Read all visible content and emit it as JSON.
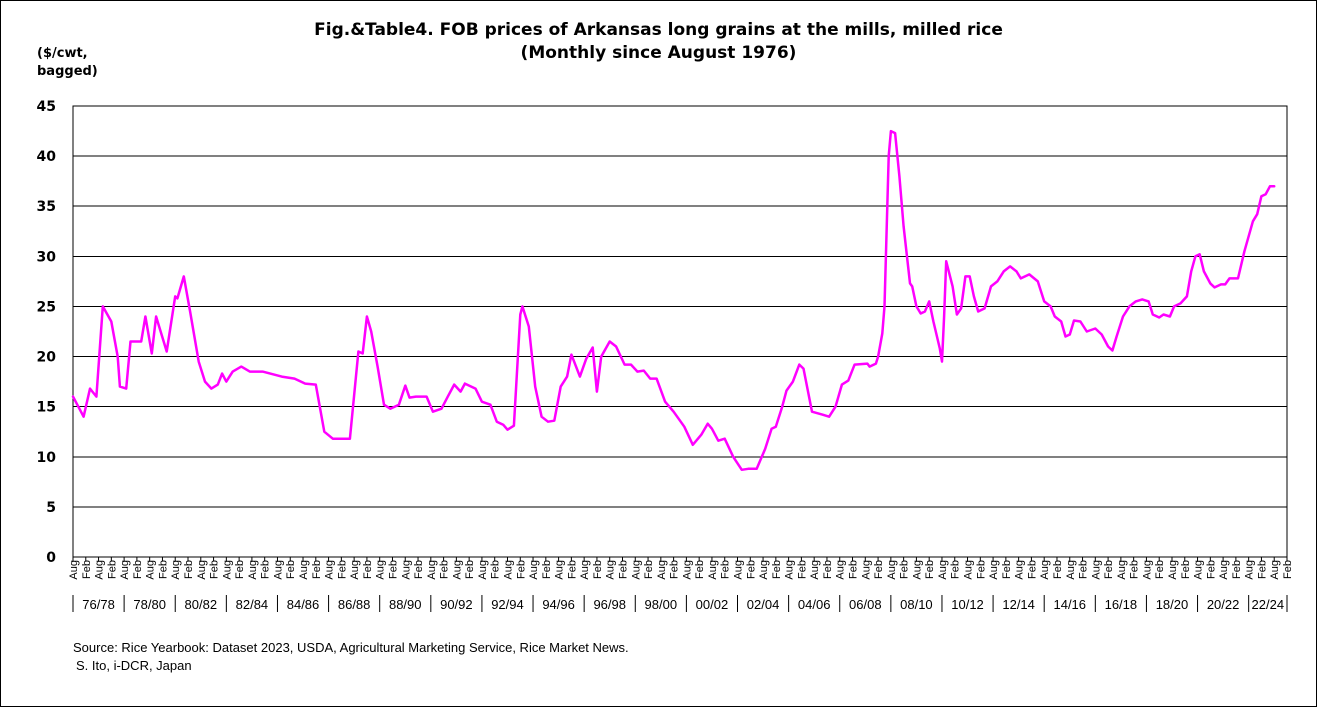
{
  "figure": {
    "title_line1": "Fig.&Table4. FOB prices of Arkansas long grains at the mills, milled rice",
    "title_line2": "(Monthly since August 1976)",
    "unit_line1": "($/cwt,",
    "unit_line2": "bagged)",
    "source": "Source:  Rice Yearbook: Dataset 2023, USDA, Agricultural Marketing Service, Rice Market News.",
    "credit": "S. Ito, i-DCR, Japan"
  },
  "chart_data": {
    "type": "line",
    "title": "Fig.&Table4. FOB prices of Arkansas long grains at the mills, milled rice (Monthly since August 1976)",
    "ylabel": "($/cwt, bagged)",
    "xlabel": "",
    "ylim": [
      0,
      45
    ],
    "yticks": [
      0,
      5,
      10,
      15,
      20,
      25,
      30,
      35,
      40,
      45
    ],
    "grid": "horizontal",
    "legend": "none",
    "x_start": "1976-08",
    "x_end": "2024-02",
    "month_tick_labels": [
      "Aug",
      "Feb"
    ],
    "period_labels": [
      "76/78",
      "78/80",
      "80/82",
      "82/84",
      "84/86",
      "86/88",
      "88/90",
      "90/92",
      "92/94",
      "94/96",
      "96/98",
      "98/00",
      "00/02",
      "02/04",
      "04/06",
      "06/08",
      "08/10",
      "10/12",
      "12/14",
      "14/16",
      "16/18",
      "18/20",
      "20/22",
      "22/24"
    ],
    "line_color": "#ff00ff",
    "series": [
      {
        "points": [
          [
            "1976-08",
            16.0
          ],
          [
            "1976-11",
            14.8
          ],
          [
            "1977-01",
            14.0
          ],
          [
            "1977-04",
            16.8
          ],
          [
            "1977-07",
            16.0
          ],
          [
            "1977-10",
            25.0
          ],
          [
            "1978-02",
            23.5
          ],
          [
            "1978-05",
            20.0
          ],
          [
            "1978-06",
            17.0
          ],
          [
            "1978-09",
            16.8
          ],
          [
            "1978-11",
            21.5
          ],
          [
            "1979-04",
            21.5
          ],
          [
            "1979-06",
            24.0
          ],
          [
            "1979-09",
            20.3
          ],
          [
            "1979-11",
            24.0
          ],
          [
            "1980-04",
            20.5
          ],
          [
            "1980-08",
            26.0
          ],
          [
            "1980-09",
            25.8
          ],
          [
            "1980-12",
            28.0
          ],
          [
            "1981-03",
            24.5
          ],
          [
            "1981-07",
            19.5
          ],
          [
            "1981-10",
            17.5
          ],
          [
            "1982-01",
            16.8
          ],
          [
            "1982-04",
            17.2
          ],
          [
            "1982-06",
            18.3
          ],
          [
            "1982-08",
            17.5
          ],
          [
            "1982-11",
            18.5
          ],
          [
            "1983-03",
            19.0
          ],
          [
            "1983-07",
            18.5
          ],
          [
            "1984-01",
            18.5
          ],
          [
            "1984-10",
            18.0
          ],
          [
            "1985-04",
            17.8
          ],
          [
            "1985-09",
            17.3
          ],
          [
            "1986-02",
            17.2
          ],
          [
            "1986-06",
            12.5
          ],
          [
            "1986-10",
            11.8
          ],
          [
            "1987-06",
            11.8
          ],
          [
            "1987-10",
            20.5
          ],
          [
            "1987-12",
            20.3
          ],
          [
            "1988-02",
            24.0
          ],
          [
            "1988-04",
            22.5
          ],
          [
            "1988-07",
            19.0
          ],
          [
            "1988-10",
            15.2
          ],
          [
            "1989-01",
            14.8
          ],
          [
            "1989-05",
            15.2
          ],
          [
            "1989-08",
            17.1
          ],
          [
            "1989-10",
            15.9
          ],
          [
            "1990-01",
            16.0
          ],
          [
            "1990-06",
            16.0
          ],
          [
            "1990-09",
            14.5
          ],
          [
            "1991-01",
            14.8
          ],
          [
            "1991-04",
            16.0
          ],
          [
            "1991-07",
            17.2
          ],
          [
            "1991-10",
            16.5
          ],
          [
            "1991-12",
            17.3
          ],
          [
            "1992-05",
            16.8
          ],
          [
            "1992-08",
            15.5
          ],
          [
            "1992-12",
            15.2
          ],
          [
            "1993-03",
            13.5
          ],
          [
            "1993-06",
            13.2
          ],
          [
            "1993-08",
            12.7
          ],
          [
            "1993-11",
            13.1
          ],
          [
            "1994-02",
            24.2
          ],
          [
            "1994-03",
            25.0
          ],
          [
            "1994-06",
            23.0
          ],
          [
            "1994-09",
            17.0
          ],
          [
            "1994-12",
            14.0
          ],
          [
            "1995-03",
            13.5
          ],
          [
            "1995-06",
            13.6
          ],
          [
            "1995-09",
            17.0
          ],
          [
            "1995-12",
            18.0
          ],
          [
            "1996-02",
            20.2
          ],
          [
            "1996-06",
            18.0
          ],
          [
            "1996-09",
            19.8
          ],
          [
            "1996-12",
            20.9
          ],
          [
            "1997-02",
            16.5
          ],
          [
            "1997-04",
            20.0
          ],
          [
            "1997-08",
            21.5
          ],
          [
            "1997-11",
            21.0
          ],
          [
            "1998-03",
            19.2
          ],
          [
            "1998-06",
            19.2
          ],
          [
            "1998-09",
            18.5
          ],
          [
            "1998-12",
            18.6
          ],
          [
            "1999-03",
            17.8
          ],
          [
            "1999-06",
            17.8
          ],
          [
            "1999-10",
            15.5
          ],
          [
            "2000-02",
            14.5
          ],
          [
            "2000-07",
            13.0
          ],
          [
            "2000-11",
            11.2
          ],
          [
            "2001-03",
            12.2
          ],
          [
            "2001-06",
            13.3
          ],
          [
            "2001-08",
            12.8
          ],
          [
            "2001-11",
            11.6
          ],
          [
            "2002-02",
            11.8
          ],
          [
            "2002-06",
            10.0
          ],
          [
            "2002-10",
            8.7
          ],
          [
            "2003-01",
            8.8
          ],
          [
            "2003-05",
            8.8
          ],
          [
            "2003-09",
            10.8
          ],
          [
            "2003-12",
            12.8
          ],
          [
            "2004-02",
            13.0
          ],
          [
            "2004-05",
            15.0
          ],
          [
            "2004-07",
            16.6
          ],
          [
            "2004-10",
            17.5
          ],
          [
            "2005-01",
            19.2
          ],
          [
            "2005-03",
            18.8
          ],
          [
            "2005-07",
            14.5
          ],
          [
            "2005-12",
            14.2
          ],
          [
            "2006-03",
            14.0
          ],
          [
            "2006-06",
            15.0
          ],
          [
            "2006-09",
            17.2
          ],
          [
            "2006-12",
            17.6
          ],
          [
            "2007-03",
            19.2
          ],
          [
            "2007-09",
            19.3
          ],
          [
            "2007-10",
            19.0
          ],
          [
            "2008-01",
            19.3
          ],
          [
            "2008-02",
            20.0
          ],
          [
            "2008-04",
            22.3
          ],
          [
            "2008-05",
            25.0
          ],
          [
            "2008-07",
            40.0
          ],
          [
            "2008-08",
            42.5
          ],
          [
            "2008-10",
            42.3
          ],
          [
            "2008-12",
            38.0
          ],
          [
            "2009-02",
            33.0
          ],
          [
            "2009-05",
            27.3
          ],
          [
            "2009-06",
            27.0
          ],
          [
            "2009-08",
            25.0
          ],
          [
            "2009-10",
            24.3
          ],
          [
            "2009-12",
            24.5
          ],
          [
            "2010-02",
            25.5
          ],
          [
            "2010-04",
            23.5
          ],
          [
            "2010-07",
            20.8
          ],
          [
            "2010-08",
            19.5
          ],
          [
            "2010-09",
            24.0
          ],
          [
            "2010-10",
            29.5
          ],
          [
            "2011-01",
            27.0
          ],
          [
            "2011-03",
            24.2
          ],
          [
            "2011-05",
            24.8
          ],
          [
            "2011-07",
            28.0
          ],
          [
            "2011-09",
            28.0
          ],
          [
            "2011-11",
            26.0
          ],
          [
            "2012-01",
            24.5
          ],
          [
            "2012-04",
            24.8
          ],
          [
            "2012-07",
            27.0
          ],
          [
            "2012-10",
            27.5
          ],
          [
            "2013-01",
            28.5
          ],
          [
            "2013-04",
            29.0
          ],
          [
            "2013-07",
            28.5
          ],
          [
            "2013-09",
            27.8
          ],
          [
            "2014-01",
            28.2
          ],
          [
            "2014-05",
            27.5
          ],
          [
            "2014-08",
            25.5
          ],
          [
            "2014-11",
            25.0
          ],
          [
            "2015-01",
            24.0
          ],
          [
            "2015-04",
            23.5
          ],
          [
            "2015-06",
            22.0
          ],
          [
            "2015-08",
            22.2
          ],
          [
            "2015-10",
            23.6
          ],
          [
            "2016-01",
            23.5
          ],
          [
            "2016-04",
            22.5
          ],
          [
            "2016-08",
            22.8
          ],
          [
            "2016-11",
            22.2
          ],
          [
            "2017-02",
            21.0
          ],
          [
            "2017-04",
            20.6
          ],
          [
            "2017-06",
            22.0
          ],
          [
            "2017-09",
            24.0
          ],
          [
            "2017-12",
            25.0
          ],
          [
            "2018-03",
            25.5
          ],
          [
            "2018-06",
            25.7
          ],
          [
            "2018-09",
            25.5
          ],
          [
            "2018-11",
            24.2
          ],
          [
            "2019-02",
            23.9
          ],
          [
            "2019-04",
            24.2
          ],
          [
            "2019-07",
            24.0
          ],
          [
            "2019-09",
            25.0
          ],
          [
            "2019-12",
            25.3
          ],
          [
            "2020-03",
            26.0
          ],
          [
            "2020-05",
            28.5
          ],
          [
            "2020-07",
            30.0
          ],
          [
            "2020-09",
            30.2
          ],
          [
            "2020-11",
            28.5
          ],
          [
            "2021-02",
            27.3
          ],
          [
            "2021-04",
            26.9
          ],
          [
            "2021-07",
            27.2
          ],
          [
            "2021-09",
            27.2
          ],
          [
            "2021-11",
            27.8
          ],
          [
            "2022-03",
            27.8
          ],
          [
            "2022-06",
            30.5
          ],
          [
            "2022-10",
            33.5
          ],
          [
            "2022-12",
            34.2
          ],
          [
            "2023-02",
            36.0
          ],
          [
            "2023-04",
            36.2
          ],
          [
            "2023-06",
            37.0
          ],
          [
            "2023-08",
            37.0
          ]
        ]
      }
    ]
  }
}
